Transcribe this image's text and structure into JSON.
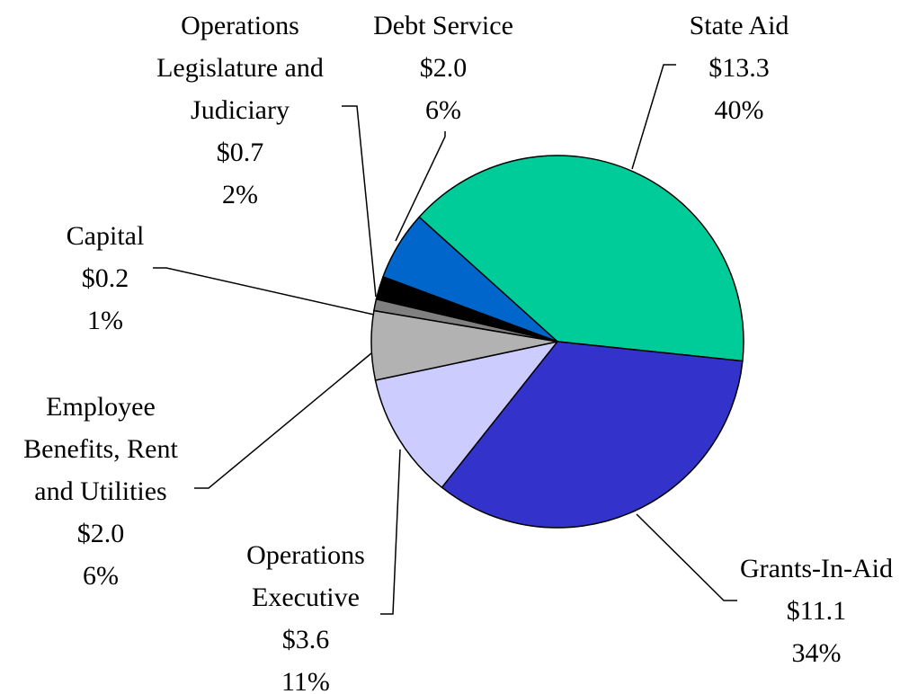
{
  "chart_data": {
    "type": "pie",
    "categories": [
      "State Aid",
      "Grants-In-Aid",
      "Operations Executive",
      "Employee Benefits, Rent and Utilities",
      "Capital",
      "Operations Legislature and Judiciary",
      "Debt Service"
    ],
    "values": [
      40,
      34,
      11,
      6,
      1,
      2,
      6
    ],
    "value_labels": [
      "40%",
      "34%",
      "11%",
      "6%",
      "1%",
      "2%",
      "6%"
    ],
    "amount_labels": [
      "$13.3",
      "$11.1",
      "$3.6",
      "$2.0",
      "$0.2",
      "$0.7",
      "$2.0"
    ],
    "colors": [
      "#00cc99",
      "#3333cc",
      "#ccccff",
      "#b2b2b2",
      "#808080",
      "#000000",
      "#0066cc"
    ]
  }
}
